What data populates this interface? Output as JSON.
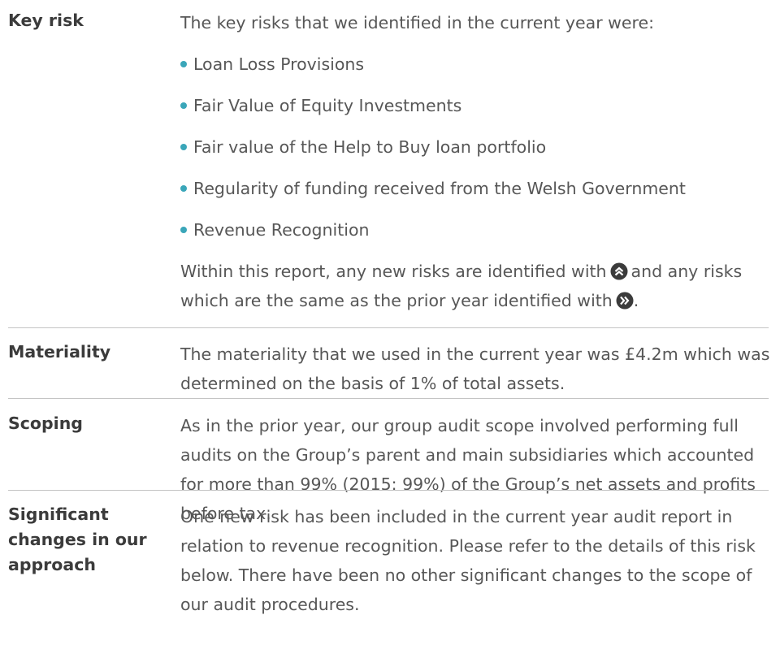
{
  "rows": [
    {
      "label": "Key risk",
      "intro": "The key risks that we identified in the current year were:",
      "bullets": [
        "Loan Loss Provisions",
        "Fair Value of Equity Investments",
        "Fair value of the Help to Buy loan portfolio",
        "Regularity of funding received from the Welsh Government",
        "Revenue Recognition"
      ],
      "closing": [
        "Within this report, any new risks are identified with",
        "and any risks which are the same as the prior year identified with",
        "."
      ]
    },
    {
      "label": "Materiality",
      "text": "The materiality that we used in the current year was £4.2m which was determined on the basis of 1% of total assets."
    },
    {
      "label": "Scoping",
      "text": "As in the prior year, our group audit scope involved performing full audits on the Group’s parent and main subsidiaries which accounted for more than 99% (2015: 99%) of the Group’s net assets and profits before tax."
    },
    {
      "label": "Significant changes in our approach",
      "text": "One new risk has been included in the current year audit report in relation to revenue recognition. Please refer to the details of this risk below. There have been no other significant changes to the scope of our audit procedures."
    }
  ]
}
